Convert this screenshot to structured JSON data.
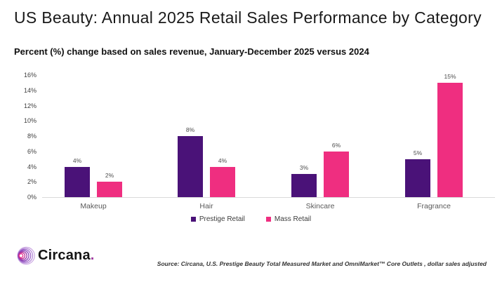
{
  "header": {
    "title": "US Beauty: Annual 2025 Retail Sales Performance by Category",
    "subtitle": "Percent (%) change based on sales revenue, January-December 2025 versus 2024"
  },
  "chart_data": {
    "type": "bar",
    "title": "US Beauty: Annual 2025 Retail Sales Performance by Category",
    "subtitle": "Percent (%) change based on sales revenue, January-December 2025 versus 2024",
    "categories": [
      "Makeup",
      "Hair",
      "Skincare",
      "Fragrance"
    ],
    "series": [
      {
        "name": "Prestige Retail",
        "color": "#4a1278",
        "values": [
          4,
          8,
          3,
          5
        ]
      },
      {
        "name": "Mass Retail",
        "color": "#ef2e80",
        "values": [
          2,
          4,
          6,
          15
        ]
      }
    ],
    "value_suffix": "%",
    "xlabel": "",
    "ylabel": "",
    "ylim": [
      0,
      16
    ],
    "ytick_step": 2,
    "ytick_labels": [
      "0%",
      "2%",
      "4%",
      "6%",
      "8%",
      "10%",
      "12%",
      "14%",
      "16%"
    ],
    "grid": false,
    "legend_position": "bottom-center"
  },
  "footer": {
    "logo_text": "Circana",
    "logo_period": ".",
    "source": "Source: Circana, U.S. Prestige Beauty Total Measured Market and OmniMarket™ Core Outlets , dollar sales adjusted"
  }
}
